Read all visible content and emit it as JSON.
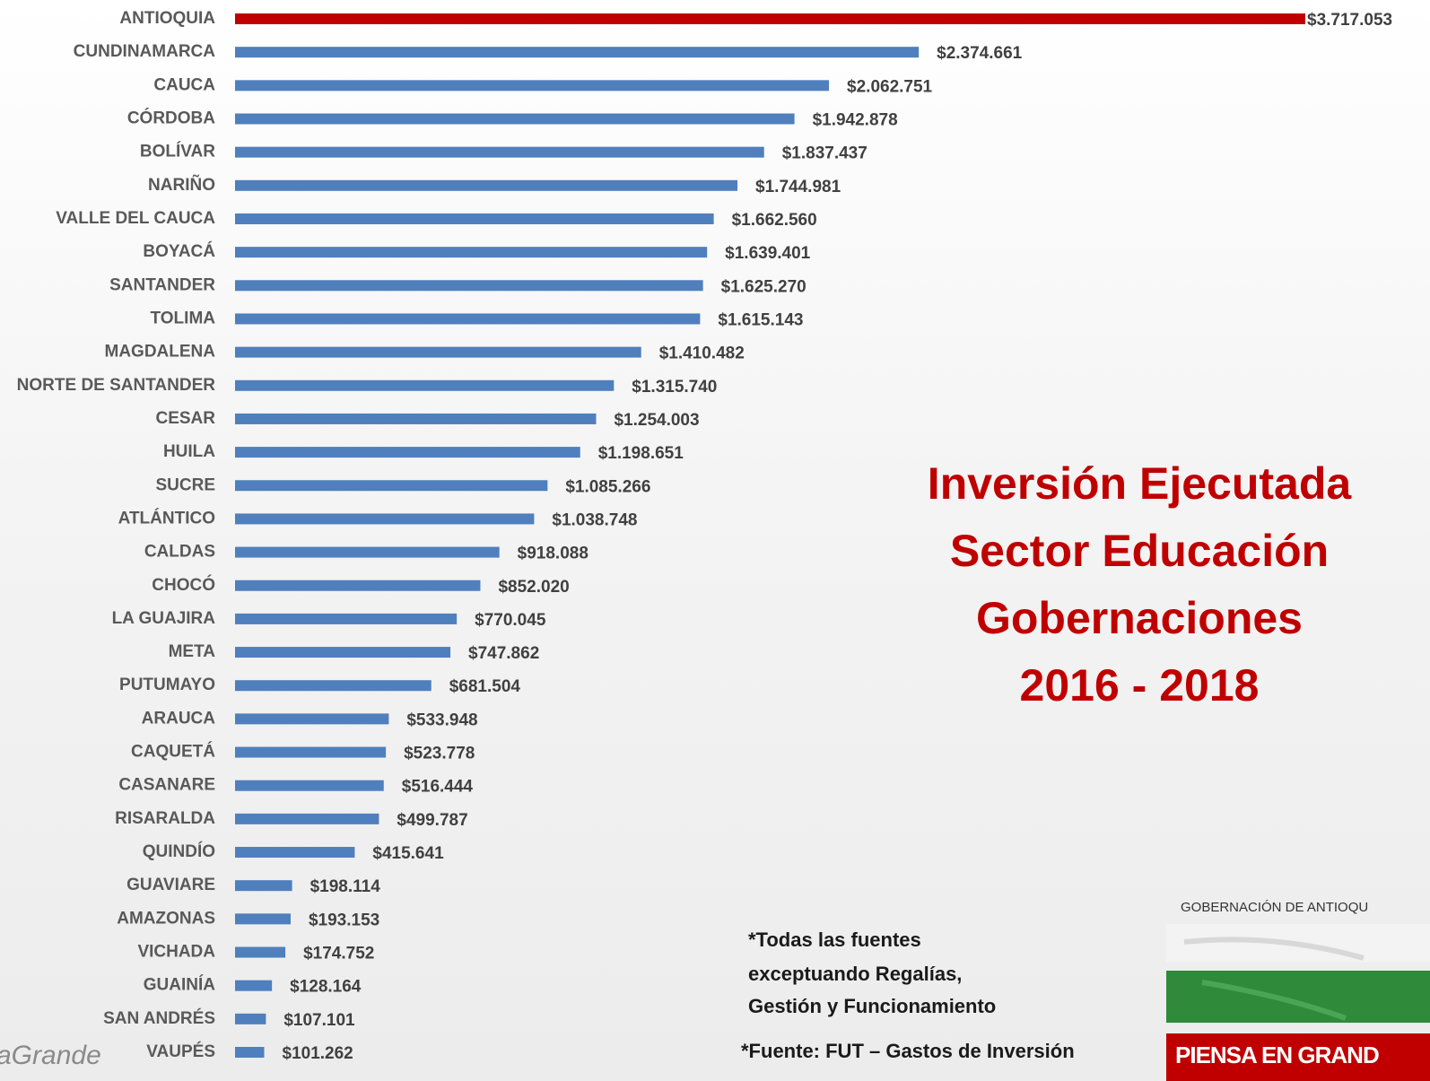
{
  "chart_data": {
    "type": "bar",
    "orientation": "horizontal",
    "title_lines": [
      "Inversión Ejecutada",
      "Sector Educación",
      "Gobernaciones",
      "2016 - 2018"
    ],
    "notes": [
      "*Todas las fuentes",
      "exceptuando Regalías,",
      "Gestión y Funcionamiento",
      "*Fuente: FUT – Gastos de Inversión"
    ],
    "logo_texts": [
      "GOBERNACIÓN DE ANTIOQU",
      "PIENSA EN GRAND",
      "aGrande"
    ],
    "categories": [
      "ANTIOQUIA",
      "CUNDINAMARCA",
      "CAUCA",
      "CÓRDOBA",
      "BOLÍVAR",
      "NARIÑO",
      "VALLE DEL CAUCA",
      "BOYACÁ",
      "SANTANDER",
      "TOLIMA",
      "MAGDALENA",
      "NORTE DE SANTANDER",
      "CESAR",
      "HUILA",
      "SUCRE",
      "ATLÁNTICO",
      "CALDAS",
      "CHOCÓ",
      "LA GUAJIRA",
      "META",
      "PUTUMAYO",
      "ARAUCA",
      "CAQUETÁ",
      "CASANARE",
      "RISARALDA",
      "QUINDÍO",
      "GUAVIARE",
      "AMAZONAS",
      "VICHADA",
      "GUAINÍA",
      "SAN ANDRÉS",
      "VAUPÉS"
    ],
    "values": [
      3717053,
      2374661,
      2062751,
      1942878,
      1837437,
      1744981,
      1662560,
      1639401,
      1625270,
      1615143,
      1410482,
      1315740,
      1254003,
      1198651,
      1085266,
      1038748,
      918088,
      852020,
      770045,
      747862,
      681504,
      533948,
      523778,
      516444,
      499787,
      415641,
      198114,
      193153,
      174752,
      128164,
      107101,
      101262
    ],
    "value_labels": [
      "$3.717.053",
      "$2.374.661",
      "$2.062.751",
      "$1.942.878",
      "$1.837.437",
      "$1.744.981",
      "$1.662.560",
      "$1.639.401",
      "$1.625.270",
      "$1.615.143",
      "$1.410.482",
      "$1.315.740",
      "$1.254.003",
      "$1.198.651",
      "$1.085.266",
      "$1.038.748",
      "$918.088",
      "$852.020",
      "$770.045",
      "$747.862",
      "$681.504",
      "$533.948",
      "$523.778",
      "$516.444",
      "$499.787",
      "$415.641",
      "$198.114",
      "$193.153",
      "$174.752",
      "$128.164",
      "$107.101",
      "$101.262"
    ],
    "colors": [
      "#c00000",
      "#4f7fbd",
      "#4f7fbd",
      "#4f7fbd",
      "#4f7fbd",
      "#4f7fbd",
      "#4f7fbd",
      "#4f7fbd",
      "#4f7fbd",
      "#4f7fbd",
      "#4f7fbd",
      "#4f7fbd",
      "#4f7fbd",
      "#4f7fbd",
      "#4f7fbd",
      "#4f7fbd",
      "#4f7fbd",
      "#4f7fbd",
      "#4f7fbd",
      "#4f7fbd",
      "#4f7fbd",
      "#4f7fbd",
      "#4f7fbd",
      "#4f7fbd",
      "#4f7fbd",
      "#4f7fbd",
      "#4f7fbd",
      "#4f7fbd",
      "#4f7fbd",
      "#4f7fbd",
      "#4f7fbd",
      "#4f7fbd"
    ]
  }
}
